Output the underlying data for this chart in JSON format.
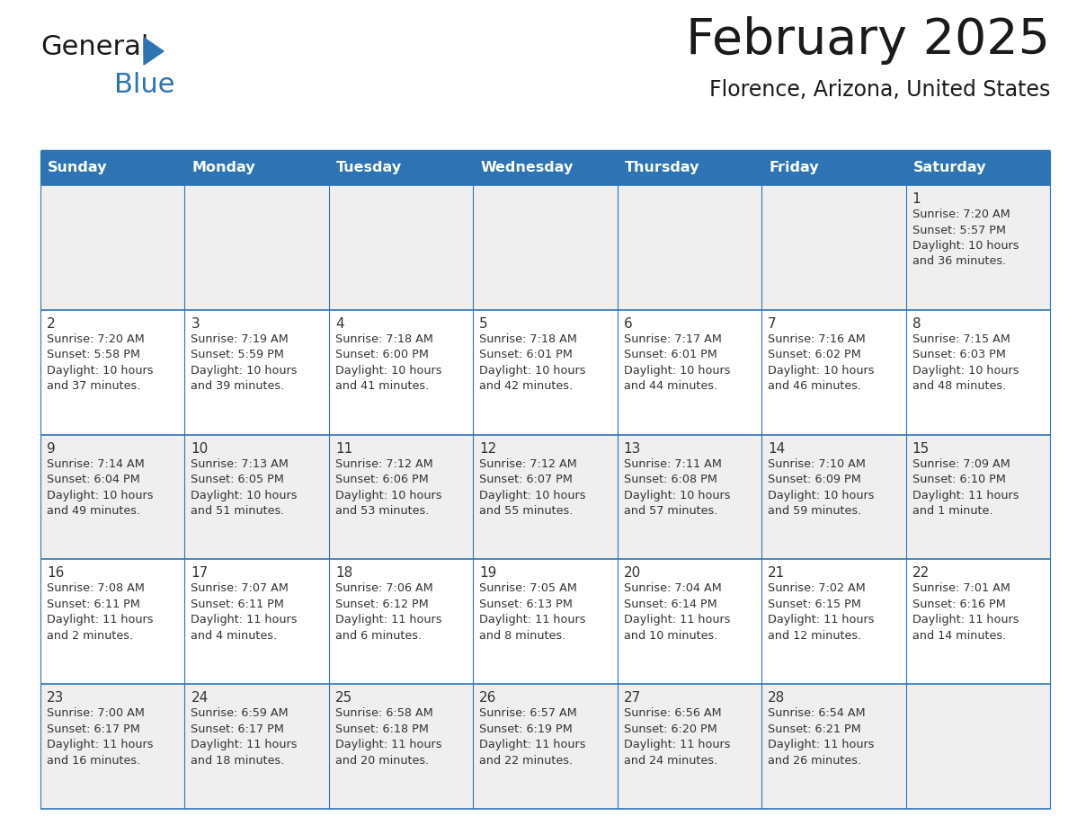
{
  "title": "February 2025",
  "subtitle": "Florence, Arizona, United States",
  "header_color": "#2E74B5",
  "header_text_color": "#FFFFFF",
  "cell_bg_white": "#FFFFFF",
  "cell_bg_gray": "#EFEFEF",
  "border_color": "#2E74B5",
  "text_color": "#333333",
  "day_headers": [
    "Sunday",
    "Monday",
    "Tuesday",
    "Wednesday",
    "Thursday",
    "Friday",
    "Saturday"
  ],
  "title_color": "#1A1A1A",
  "subtitle_color": "#1A1A1A",
  "logo_general_color": "#1A1A1A",
  "logo_blue_color": "#2E74B5",
  "weeks": [
    [
      {
        "day": null,
        "sunrise": null,
        "sunset": null,
        "daylight": null
      },
      {
        "day": null,
        "sunrise": null,
        "sunset": null,
        "daylight": null
      },
      {
        "day": null,
        "sunrise": null,
        "sunset": null,
        "daylight": null
      },
      {
        "day": null,
        "sunrise": null,
        "sunset": null,
        "daylight": null
      },
      {
        "day": null,
        "sunrise": null,
        "sunset": null,
        "daylight": null
      },
      {
        "day": null,
        "sunrise": null,
        "sunset": null,
        "daylight": null
      },
      {
        "day": 1,
        "sunrise": "7:20 AM",
        "sunset": "5:57 PM",
        "daylight": "10 hours and 36 minutes."
      }
    ],
    [
      {
        "day": 2,
        "sunrise": "7:20 AM",
        "sunset": "5:58 PM",
        "daylight": "10 hours and 37 minutes."
      },
      {
        "day": 3,
        "sunrise": "7:19 AM",
        "sunset": "5:59 PM",
        "daylight": "10 hours and 39 minutes."
      },
      {
        "day": 4,
        "sunrise": "7:18 AM",
        "sunset": "6:00 PM",
        "daylight": "10 hours and 41 minutes."
      },
      {
        "day": 5,
        "sunrise": "7:18 AM",
        "sunset": "6:01 PM",
        "daylight": "10 hours and 42 minutes."
      },
      {
        "day": 6,
        "sunrise": "7:17 AM",
        "sunset": "6:01 PM",
        "daylight": "10 hours and 44 minutes."
      },
      {
        "day": 7,
        "sunrise": "7:16 AM",
        "sunset": "6:02 PM",
        "daylight": "10 hours and 46 minutes."
      },
      {
        "day": 8,
        "sunrise": "7:15 AM",
        "sunset": "6:03 PM",
        "daylight": "10 hours and 48 minutes."
      }
    ],
    [
      {
        "day": 9,
        "sunrise": "7:14 AM",
        "sunset": "6:04 PM",
        "daylight": "10 hours and 49 minutes."
      },
      {
        "day": 10,
        "sunrise": "7:13 AM",
        "sunset": "6:05 PM",
        "daylight": "10 hours and 51 minutes."
      },
      {
        "day": 11,
        "sunrise": "7:12 AM",
        "sunset": "6:06 PM",
        "daylight": "10 hours and 53 minutes."
      },
      {
        "day": 12,
        "sunrise": "7:12 AM",
        "sunset": "6:07 PM",
        "daylight": "10 hours and 55 minutes."
      },
      {
        "day": 13,
        "sunrise": "7:11 AM",
        "sunset": "6:08 PM",
        "daylight": "10 hours and 57 minutes."
      },
      {
        "day": 14,
        "sunrise": "7:10 AM",
        "sunset": "6:09 PM",
        "daylight": "10 hours and 59 minutes."
      },
      {
        "day": 15,
        "sunrise": "7:09 AM",
        "sunset": "6:10 PM",
        "daylight": "11 hours and 1 minute."
      }
    ],
    [
      {
        "day": 16,
        "sunrise": "7:08 AM",
        "sunset": "6:11 PM",
        "daylight": "11 hours and 2 minutes."
      },
      {
        "day": 17,
        "sunrise": "7:07 AM",
        "sunset": "6:11 PM",
        "daylight": "11 hours and 4 minutes."
      },
      {
        "day": 18,
        "sunrise": "7:06 AM",
        "sunset": "6:12 PM",
        "daylight": "11 hours and 6 minutes."
      },
      {
        "day": 19,
        "sunrise": "7:05 AM",
        "sunset": "6:13 PM",
        "daylight": "11 hours and 8 minutes."
      },
      {
        "day": 20,
        "sunrise": "7:04 AM",
        "sunset": "6:14 PM",
        "daylight": "11 hours and 10 minutes."
      },
      {
        "day": 21,
        "sunrise": "7:02 AM",
        "sunset": "6:15 PM",
        "daylight": "11 hours and 12 minutes."
      },
      {
        "day": 22,
        "sunrise": "7:01 AM",
        "sunset": "6:16 PM",
        "daylight": "11 hours and 14 minutes."
      }
    ],
    [
      {
        "day": 23,
        "sunrise": "7:00 AM",
        "sunset": "6:17 PM",
        "daylight": "11 hours and 16 minutes."
      },
      {
        "day": 24,
        "sunrise": "6:59 AM",
        "sunset": "6:17 PM",
        "daylight": "11 hours and 18 minutes."
      },
      {
        "day": 25,
        "sunrise": "6:58 AM",
        "sunset": "6:18 PM",
        "daylight": "11 hours and 20 minutes."
      },
      {
        "day": 26,
        "sunrise": "6:57 AM",
        "sunset": "6:19 PM",
        "daylight": "11 hours and 22 minutes."
      },
      {
        "day": 27,
        "sunrise": "6:56 AM",
        "sunset": "6:20 PM",
        "daylight": "11 hours and 24 minutes."
      },
      {
        "day": 28,
        "sunrise": "6:54 AM",
        "sunset": "6:21 PM",
        "daylight": "11 hours and 26 minutes."
      },
      {
        "day": null,
        "sunrise": null,
        "sunset": null,
        "daylight": null
      }
    ]
  ],
  "fig_width": 11.88,
  "fig_height": 9.18,
  "dpi": 100
}
